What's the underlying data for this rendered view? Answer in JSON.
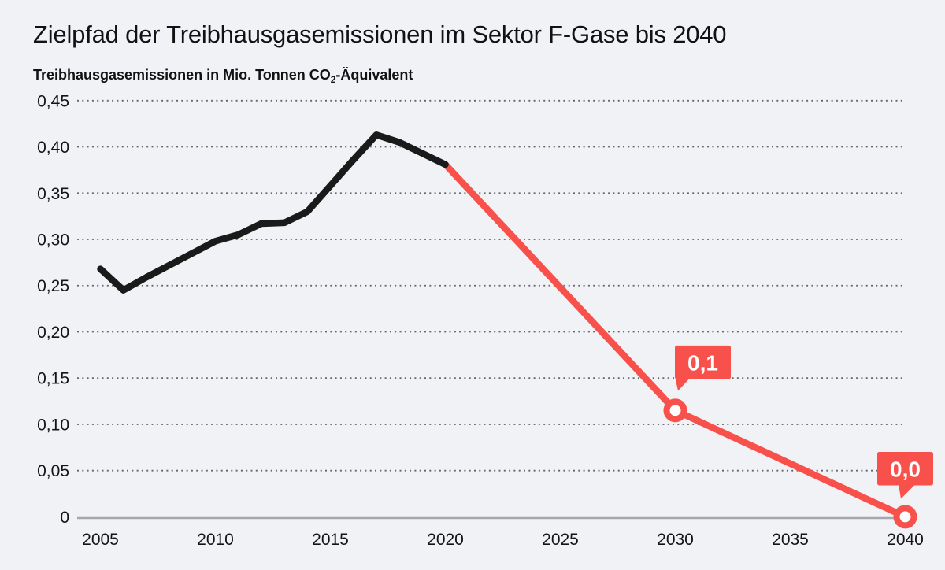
{
  "page": {
    "background_color": "#f1f2f6",
    "text_color": "#121212"
  },
  "header": {
    "title": "Zielpfad der Treibhausgasemissionen im Sektor F-Gase bis 2040",
    "subtitle": {
      "prefix": "Treibhausgasemissionen in Mio. Tonnen CO",
      "subscript": "2",
      "suffix": "-Äquivalent"
    }
  },
  "chart_data": {
    "type": "line",
    "title": "Zielpfad der Treibhausgasemissionen im Sektor F-Gase bis 2040",
    "ylabel": "Treibhausgasemissionen in Mio. Tonnen CO2-Äquivalent",
    "xlabel": "",
    "xlim": [
      2005,
      2040
    ],
    "ylim": [
      0,
      0.45
    ],
    "grid": "horizontal-dotted",
    "legend_position": "none",
    "x_ticks": [
      {
        "value": 2005,
        "label": "2005"
      },
      {
        "value": 2010,
        "label": "2010"
      },
      {
        "value": 2015,
        "label": "2015"
      },
      {
        "value": 2020,
        "label": "2020"
      },
      {
        "value": 2025,
        "label": "2025"
      },
      {
        "value": 2030,
        "label": "2030"
      },
      {
        "value": 2035,
        "label": "2035"
      },
      {
        "value": 2040,
        "label": "2040"
      }
    ],
    "y_ticks": [
      {
        "value": 0,
        "label": "0"
      },
      {
        "value": 0.05,
        "label": "0,05"
      },
      {
        "value": 0.1,
        "label": "0,10"
      },
      {
        "value": 0.15,
        "label": "0,15"
      },
      {
        "value": 0.2,
        "label": "0,20"
      },
      {
        "value": 0.25,
        "label": "0,25"
      },
      {
        "value": 0.3,
        "label": "0,30"
      },
      {
        "value": 0.35,
        "label": "0,35"
      },
      {
        "value": 0.4,
        "label": "0,40"
      },
      {
        "value": 0.45,
        "label": "0,45"
      }
    ],
    "series": [
      {
        "id": "target-path",
        "color": "#f8504b",
        "points": [
          [
            2020,
            0.381
          ],
          [
            2030,
            0.115
          ],
          [
            2040,
            0.0
          ]
        ]
      },
      {
        "id": "historical",
        "color": "#1a1a1a",
        "points": [
          [
            2005,
            0.268
          ],
          [
            2006,
            0.245
          ],
          [
            2007,
            0.259
          ],
          [
            2008,
            0.272
          ],
          [
            2009,
            0.285
          ],
          [
            2010,
            0.298
          ],
          [
            2011,
            0.305
          ],
          [
            2012,
            0.317
          ],
          [
            2013,
            0.318
          ],
          [
            2014,
            0.33
          ],
          [
            2015,
            0.358
          ],
          [
            2016,
            0.386
          ],
          [
            2017,
            0.413
          ],
          [
            2018,
            0.405
          ],
          [
            2019,
            0.393
          ],
          [
            2020,
            0.381
          ]
        ]
      }
    ],
    "markers": [
      {
        "x": 2030,
        "y": 0.115
      },
      {
        "x": 2040,
        "y": 0.0
      }
    ],
    "annotations": [
      {
        "x": 2030,
        "y": 0.115,
        "label": "0,1",
        "align": "right"
      },
      {
        "x": 2040,
        "y": 0.0,
        "label": "0,0",
        "align": "center"
      }
    ],
    "annotation_style": {
      "badge_color": "#f8504b",
      "badge_text_color": "#ffffff"
    }
  }
}
